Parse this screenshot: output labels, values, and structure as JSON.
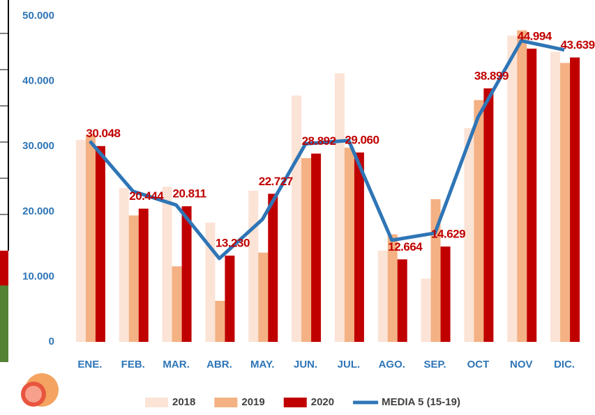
{
  "chart_data": {
    "type": "bar",
    "categories": [
      "ENE.",
      "FEB.",
      "MAR.",
      "ABR.",
      "MAY.",
      "JUN.",
      "JUL.",
      "AGO.",
      "SEP.",
      "OCT",
      "NOV",
      "DIC."
    ],
    "series": [
      {
        "name": "2018",
        "type": "bar",
        "color": "#fbe3d6",
        "values": [
          31000,
          23600,
          23800,
          18300,
          23200,
          37800,
          41200,
          14000,
          9700,
          32800,
          47000,
          44500
        ]
      },
      {
        "name": "2019",
        "type": "bar",
        "color": "#f4b183",
        "values": [
          31800,
          19400,
          11600,
          6300,
          13700,
          28200,
          29800,
          16500,
          21900,
          37100,
          47800,
          42800
        ]
      },
      {
        "name": "2020",
        "type": "bar",
        "color": "#c00000",
        "values": [
          30048,
          20444,
          20811,
          13230,
          22727,
          28892,
          29060,
          12664,
          14629,
          38899,
          44994,
          43639
        ],
        "value_labels": [
          "30.048",
          "20.444",
          "20.811",
          "13.230",
          "22.727",
          "28.892",
          "29.060",
          "12.664",
          "14.629",
          "38.899",
          "44.994",
          "43.639"
        ]
      },
      {
        "name": "MEDIA 5 (15-19)",
        "type": "line",
        "color": "#2e75b6",
        "values": [
          30800,
          23100,
          21000,
          12800,
          18800,
          30400,
          30900,
          15600,
          16700,
          34500,
          46200,
          44800
        ]
      }
    ],
    "ylim": [
      0,
      50000
    ],
    "yticks": [
      0,
      {
        "value": 10000,
        "label": "10.000"
      },
      {
        "value": 20000,
        "label": "20.000"
      },
      {
        "value": 30000,
        "label": "30.000"
      },
      {
        "value": 40000,
        "label": "40.000"
      },
      {
        "value": 50000,
        "label": "50.000"
      }
    ],
    "grid": false,
    "legend": "bottom"
  }
}
